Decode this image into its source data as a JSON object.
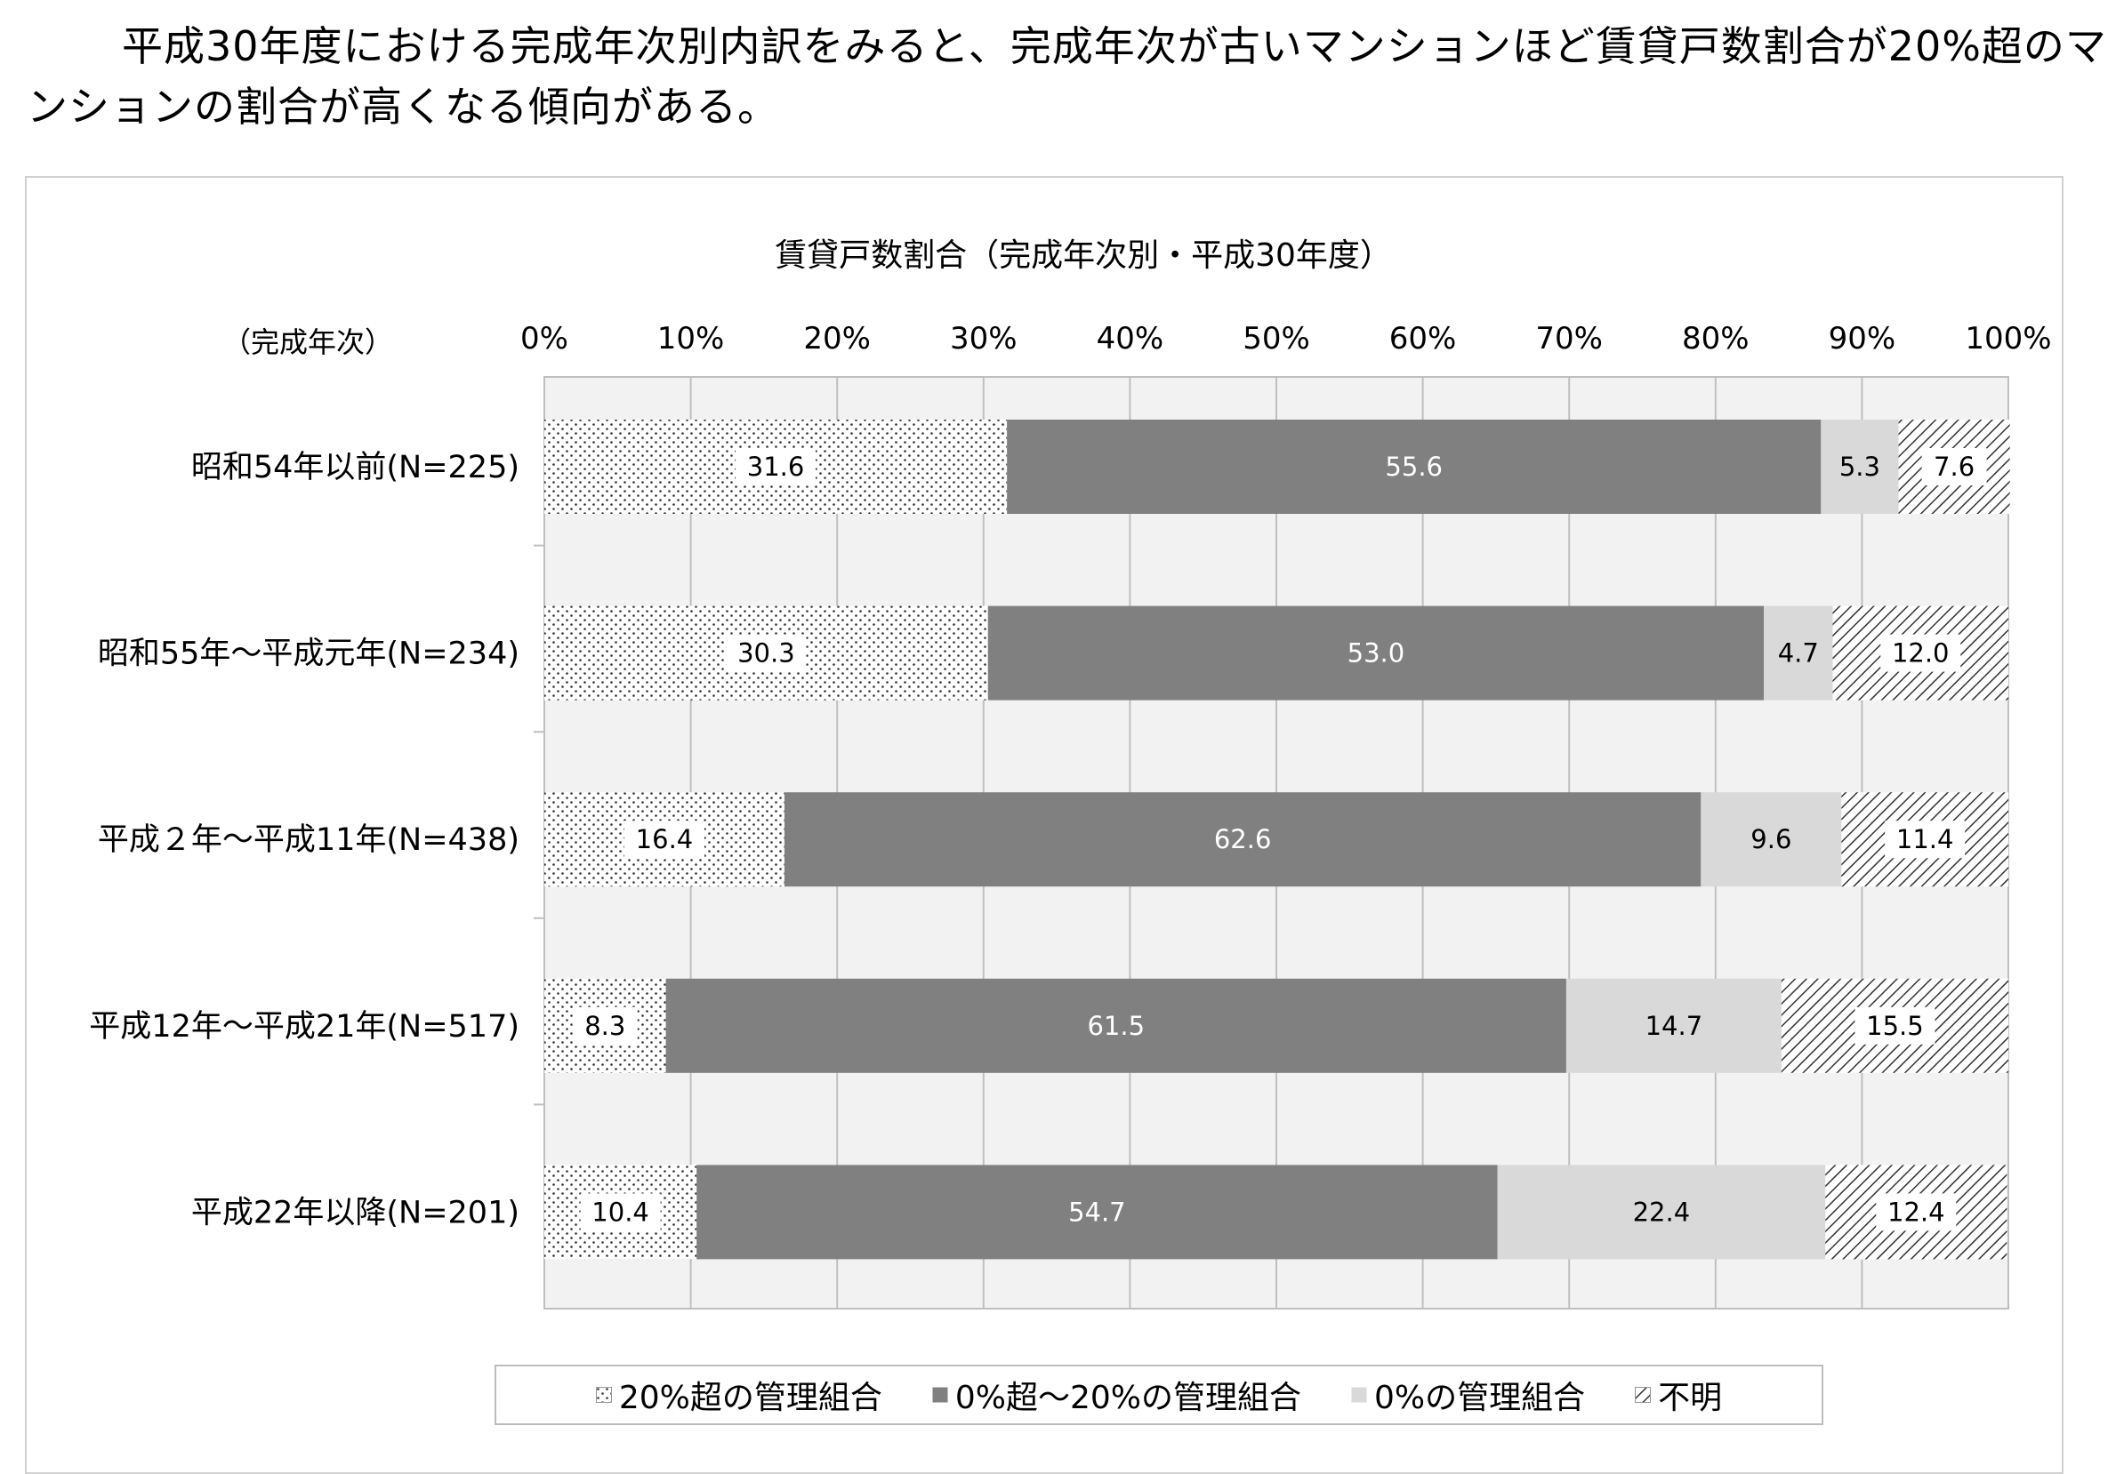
{
  "headline": "　平成30年度における完成年次別内訳をみると、完成年次が古いマンションほど賃貸戸数割合が20%超のマンションの割合が高くなる傾向がある。",
  "chart_data": {
    "type": "bar",
    "orientation": "horizontal",
    "stacked": true,
    "title": "賃貸戸数割合（完成年次別・平成30年度）",
    "ylabel": "（完成年次）",
    "categories": [
      "昭和54年以前(N=225)",
      "昭和55年～平成元年(N=234)",
      "平成２年～平成11年(N=438)",
      "平成12年～平成21年(N=517)",
      "平成22年以降(N=201)"
    ],
    "xticks": [
      "0%",
      "10%",
      "20%",
      "30%",
      "40%",
      "50%",
      "60%",
      "70%",
      "80%",
      "90%",
      "100%"
    ],
    "xlim": [
      0,
      100
    ],
    "series": [
      {
        "name": "20%超の管理組合",
        "values": [
          31.6,
          30.3,
          16.4,
          8.3,
          10.4
        ],
        "color": "#ffffff",
        "pattern": "dots"
      },
      {
        "name": "0%超～20%の管理組合",
        "values": [
          55.6,
          53.0,
          62.6,
          61.5,
          54.7
        ],
        "color": "#808080",
        "pattern": "solid"
      },
      {
        "name": "0%の管理組合",
        "values": [
          5.3,
          4.7,
          9.6,
          14.7,
          22.4
        ],
        "color": "#d9d9d9",
        "pattern": "solid"
      },
      {
        "name": "不明",
        "values": [
          7.6,
          12.0,
          11.4,
          15.5,
          12.4
        ],
        "color": "#ffffff",
        "pattern": "hatch"
      }
    ],
    "labels": [
      [
        "31.6",
        "55.6",
        "5.3",
        "7.6"
      ],
      [
        "30.3",
        "53.0",
        "4.7",
        "12.0"
      ],
      [
        "16.4",
        "62.6",
        "9.6",
        "11.4"
      ],
      [
        "8.3",
        "61.5",
        "14.7",
        "15.5"
      ],
      [
        "10.4",
        "54.7",
        "22.4",
        "12.4"
      ]
    ],
    "grid": true,
    "plot_background": "#f2f2f2",
    "legend_position": "bottom"
  }
}
